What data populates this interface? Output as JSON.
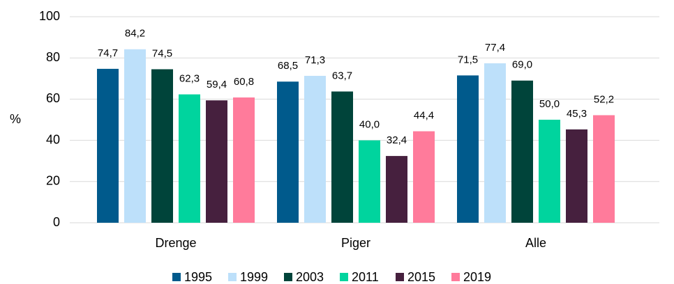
{
  "chart_data": {
    "type": "bar",
    "y_label": "%",
    "categories": [
      "Drenge",
      "Piger",
      "Alle"
    ],
    "series": [
      {
        "name": "1995",
        "color": "#005a8c",
        "values": [
          74.7,
          68.5,
          71.5
        ],
        "value_labels": [
          "74,7",
          "68,5",
          "71,5"
        ]
      },
      {
        "name": "1999",
        "color": "#bde0fa",
        "values": [
          84.2,
          71.3,
          77.4
        ],
        "value_labels": [
          "84,2",
          "71,3",
          "77,4"
        ]
      },
      {
        "name": "2003",
        "color": "#00443a",
        "values": [
          74.5,
          63.7,
          69.0
        ],
        "value_labels": [
          "74,5",
          "63,7",
          "69,0"
        ]
      },
      {
        "name": "2011",
        "color": "#00d49e",
        "values": [
          62.3,
          40.0,
          50.0
        ],
        "value_labels": [
          "62,3",
          "40,0",
          "50,0"
        ]
      },
      {
        "name": "2015",
        "color": "#46203e",
        "values": [
          59.4,
          32.4,
          45.3
        ],
        "value_labels": [
          "59,4",
          "32,4",
          "45,3"
        ]
      },
      {
        "name": "2019",
        "color": "#ff7b9b",
        "values": [
          60.8,
          44.4,
          52.2
        ],
        "value_labels": [
          "60,8",
          "44,4",
          "52,2"
        ]
      }
    ],
    "ylim": [
      0,
      100
    ],
    "yticks": [
      0,
      20,
      40,
      60,
      80,
      100
    ],
    "grid": true
  }
}
